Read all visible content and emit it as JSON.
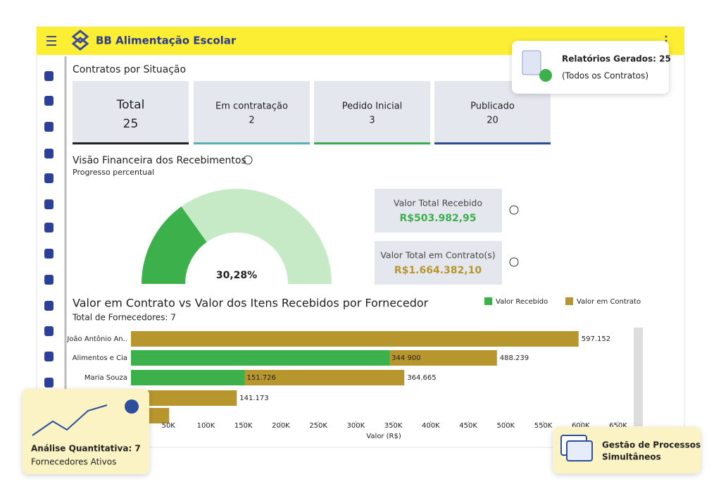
{
  "app": {
    "title": "BB Alimentação Escolar"
  },
  "contracts": {
    "title": "Contratos por Situação",
    "cards": [
      {
        "label": "Total",
        "value": 25
      },
      {
        "label": "Em contratação",
        "value": 2
      },
      {
        "label": "Pedido Inicial",
        "value": 3
      },
      {
        "label": "Publicado",
        "value": 20
      }
    ]
  },
  "finance": {
    "title": "Visão Financeira dos Recebimentos",
    "subtitle": "Progresso percentual",
    "gauge": {
      "type": "gauge",
      "value": 30.28,
      "value_label": "30,28%",
      "max": 100,
      "color": "#3cb04a",
      "track_color": "#c6e9c6"
    },
    "cards": [
      {
        "label": "Valor Total Recebido",
        "value": "R$503.982,95",
        "color": "#3cb04a"
      },
      {
        "label": "Valor Total em Contrato(s)",
        "value": "R$1.664.382,10",
        "color": "#b8962e"
      }
    ]
  },
  "chart_data": {
    "type": "bar",
    "orientation": "horizontal",
    "title": "Valor em Contrato vs Valor dos Itens Recebidos por Fornecedor",
    "subtitle": "Total de Fornecedores: 7",
    "categories": [
      "João Antônio An..",
      "Alimentos e Cia",
      "Maria Souza",
      null,
      null
    ],
    "series": [
      {
        "name": "Valor Recebido",
        "color": "#3cb04a",
        "values": [
          null,
          344900,
          151726,
          null,
          null
        ],
        "value_labels": [
          null,
          "344 900",
          "151.726",
          null,
          null
        ]
      },
      {
        "name": "Valor em Contrato",
        "color": "#b8962e",
        "values": [
          597152,
          488239,
          364665,
          141173,
          51000
        ],
        "value_labels": [
          "597.152",
          "488.239",
          "364.665",
          "141.173",
          null
        ]
      }
    ],
    "xlim": [
      0,
      650000
    ],
    "xticks": [
      {
        "value": 50000,
        "label": "50K"
      },
      {
        "value": 100000,
        "label": "100K"
      },
      {
        "value": 150000,
        "label": "150K"
      },
      {
        "value": 200000,
        "label": "200K"
      },
      {
        "value": 250000,
        "label": "250K"
      },
      {
        "value": 300000,
        "label": "300K"
      },
      {
        "value": 350000,
        "label": "350K"
      },
      {
        "value": 400000,
        "label": "400K"
      },
      {
        "value": 450000,
        "label": "450K"
      },
      {
        "value": 500000,
        "label": "500K"
      },
      {
        "value": 550000,
        "label": "550K"
      },
      {
        "value": 600000,
        "label": "600K"
      },
      {
        "value": 650000,
        "label": "650K"
      }
    ],
    "xlabel": "Valor (R$)"
  },
  "overlays": {
    "reports": {
      "title": "Relatórios Gerados: 25",
      "subtitle": "(Todos os Contratos)"
    },
    "analysis": {
      "title": "Análise Quantitativa: 7",
      "subtitle": "Fornecedores Ativos"
    },
    "process": {
      "line1": "Gestão de Processos",
      "line2": "Simultâneos"
    }
  }
}
